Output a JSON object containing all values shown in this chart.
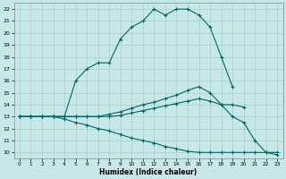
{
  "xlabel": "Humidex (Indice chaleur)",
  "background_color": "#c8e8e8",
  "grid_color": "#a8cece",
  "line_color": "#006666",
  "xlim": [
    -0.5,
    23.5
  ],
  "ylim": [
    9.5,
    22.5
  ],
  "xticks": [
    0,
    1,
    2,
    3,
    4,
    5,
    6,
    7,
    8,
    9,
    10,
    11,
    12,
    13,
    14,
    15,
    16,
    17,
    18,
    19,
    20,
    21,
    22,
    23
  ],
  "yticks": [
    10,
    11,
    12,
    13,
    14,
    15,
    16,
    17,
    18,
    19,
    20,
    21,
    22
  ],
  "series": [
    {
      "x": [
        0,
        1,
        2,
        3,
        4,
        5,
        6,
        7,
        8,
        9,
        10,
        11,
        12,
        13,
        14,
        15,
        16,
        17,
        18,
        19,
        20,
        21,
        22,
        23
      ],
      "y": [
        13,
        13,
        13,
        13,
        13,
        16,
        17,
        17.5,
        17.5,
        19.5,
        20.5,
        21,
        22,
        21.5,
        22,
        22,
        21.5,
        20.5,
        18,
        15.5,
        null,
        null,
        null,
        null
      ]
    },
    {
      "x": [
        0,
        1,
        2,
        3,
        4,
        5,
        6,
        7,
        8,
        9,
        10,
        11,
        12,
        13,
        14,
        15,
        16,
        17,
        18,
        19,
        20,
        21,
        22,
        23
      ],
      "y": [
        13,
        13,
        13,
        13,
        13,
        13,
        13,
        13,
        13.2,
        13.4,
        13.7,
        14,
        14.2,
        14.5,
        14.8,
        15.2,
        15.5,
        15,
        14,
        13,
        12.5,
        11,
        10,
        9.8
      ]
    },
    {
      "x": [
        0,
        1,
        2,
        3,
        4,
        5,
        6,
        7,
        8,
        9,
        10,
        11,
        12,
        13,
        14,
        15,
        16,
        17,
        18,
        19,
        20,
        21,
        22,
        23
      ],
      "y": [
        13,
        13,
        13,
        13,
        13,
        13,
        13,
        13,
        13,
        13.1,
        13.3,
        13.5,
        13.7,
        13.9,
        14.1,
        14.3,
        14.5,
        14.3,
        14,
        14,
        13.8,
        null,
        null,
        null
      ]
    },
    {
      "x": [
        0,
        1,
        2,
        3,
        4,
        5,
        6,
        7,
        8,
        9,
        10,
        11,
        12,
        13,
        14,
        15,
        16,
        17,
        18,
        19,
        20,
        21,
        22,
        23
      ],
      "y": [
        13,
        13,
        13,
        13,
        12.8,
        12.5,
        12.3,
        12,
        11.8,
        11.5,
        11.2,
        11,
        10.8,
        10.5,
        10.3,
        10.1,
        10,
        10,
        10,
        10,
        10,
        10,
        10,
        10
      ]
    }
  ]
}
